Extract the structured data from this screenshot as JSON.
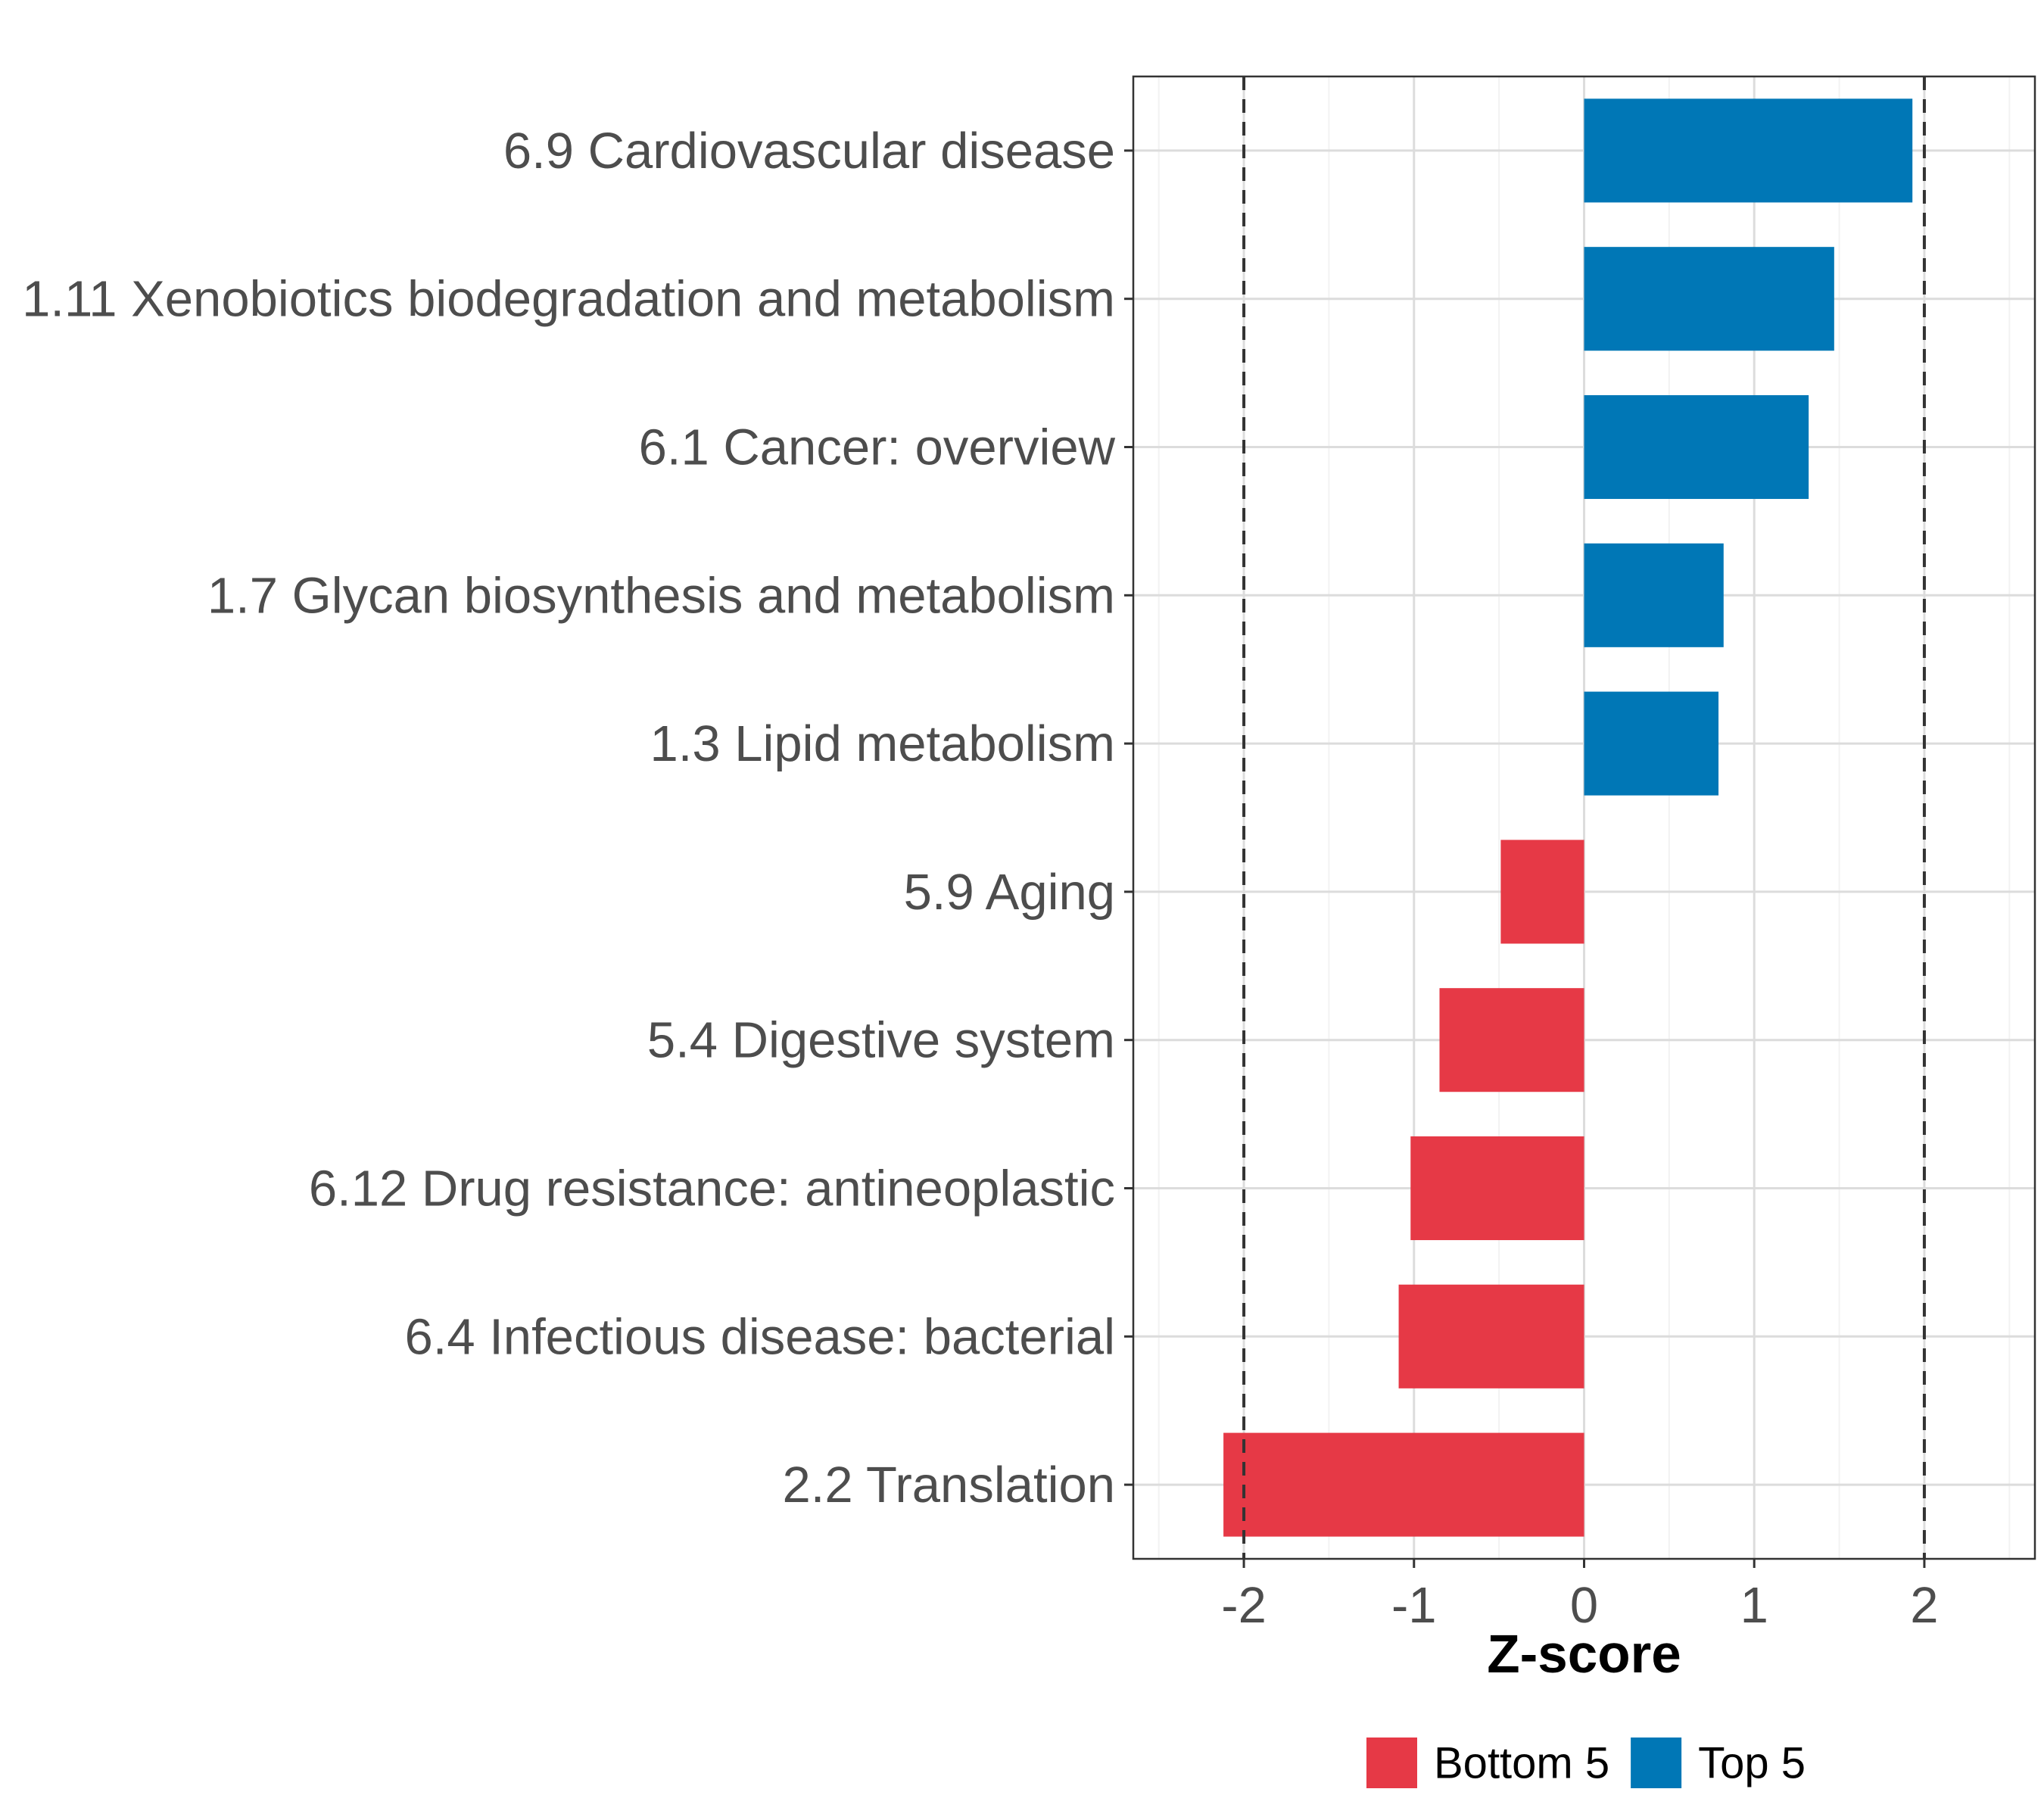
{
  "chart_data": {
    "type": "bar",
    "orientation": "horizontal",
    "title": "",
    "xlabel": "Z-score",
    "ylabel": "",
    "xlim": [
      -2.65,
      2.65
    ],
    "xticks": [
      "-2",
      "-1",
      "0",
      "1",
      "2"
    ],
    "xtick_values": [
      -2,
      -1,
      0,
      1,
      2
    ],
    "reference_lines": [
      -2,
      2
    ],
    "grid": true,
    "categories": [
      "6.9 Cardiovascular disease",
      "1.11 Xenobiotics biodegradation and metabolism",
      "6.1 Cancer: overview",
      "1.7 Glycan biosynthesis and metabolism",
      "1.3 Lipid metabolism",
      "5.9 Aging",
      "5.4 Digestive system",
      "6.12 Drug resistance: antineoplastic",
      "6.4 Infectious disease: bacterial",
      "2.2 Translation"
    ],
    "values": [
      1.93,
      1.47,
      1.32,
      0.82,
      0.79,
      -0.49,
      -0.85,
      -1.02,
      -1.09,
      -2.12
    ],
    "groups": [
      "Top 5",
      "Top 5",
      "Top 5",
      "Top 5",
      "Top 5",
      "Bottom 5",
      "Bottom 5",
      "Bottom 5",
      "Bottom 5",
      "Bottom 5"
    ],
    "legend": {
      "position": "bottom",
      "entries": [
        {
          "label": "Bottom 5",
          "color": "#E63946"
        },
        {
          "label": "Top 5",
          "color": "#0077B6"
        }
      ]
    }
  }
}
